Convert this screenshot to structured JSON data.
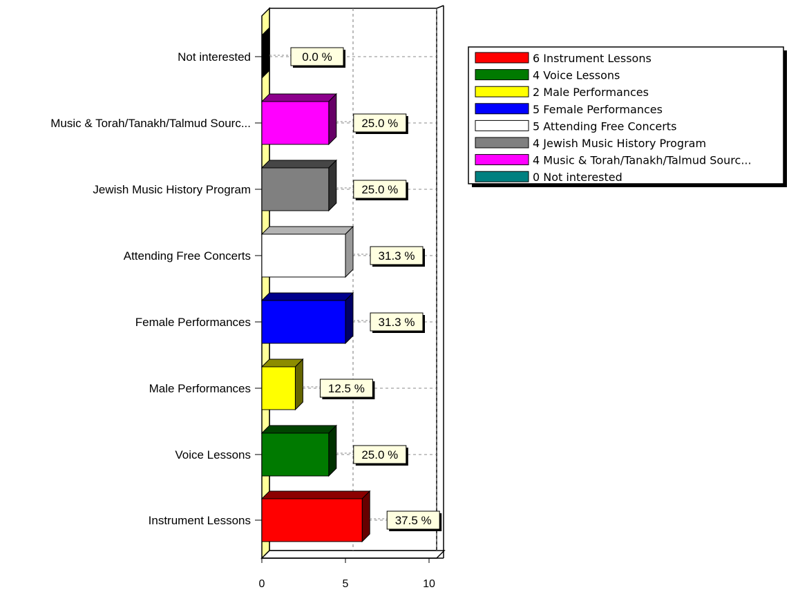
{
  "chart_data": {
    "type": "bar",
    "orientation": "horizontal",
    "categories": [
      "Instrument Lessons",
      "Voice Lessons",
      "Male Performances",
      "Female Performances",
      "Attending Free Concerts",
      "Jewish Music History Program",
      "Music & Torah/Tanakh/Talmud Sourc...",
      "Not interested"
    ],
    "values": [
      6,
      4,
      2,
      5,
      5,
      4,
      4,
      0
    ],
    "data_labels": [
      "37.5 %",
      "25.0 %",
      "12.5 %",
      "31.3 %",
      "31.3 %",
      "25.0 %",
      "25.0 %",
      "0.0 %"
    ],
    "colors": [
      "#ff0000",
      "#007a00",
      "#ffff00",
      "#0000ff",
      "#ffffff",
      "#808080",
      "#ff00ff",
      "#000000"
    ],
    "legend_colors": [
      "#ff0000",
      "#007a00",
      "#ffff00",
      "#0000ff",
      "#ffffff",
      "#808080",
      "#ff00ff",
      "#008080"
    ],
    "legend": [
      "6 Instrument Lessons",
      "4 Voice Lessons",
      "2 Male Performances",
      "5 Female Performances",
      "5 Attending Free Concerts",
      "4 Jewish Music History Program",
      "4 Music & Torah/Tanakh/Talmud Sourc...",
      "0 Not interested"
    ],
    "xlim": [
      0,
      10.5
    ],
    "xticks": [
      0,
      5,
      10
    ],
    "xtick_labels": [
      "0",
      "5",
      "10"
    ],
    "grid": true,
    "legend_position": "top-right",
    "title": "",
    "xlabel": "",
    "ylabel": ""
  }
}
